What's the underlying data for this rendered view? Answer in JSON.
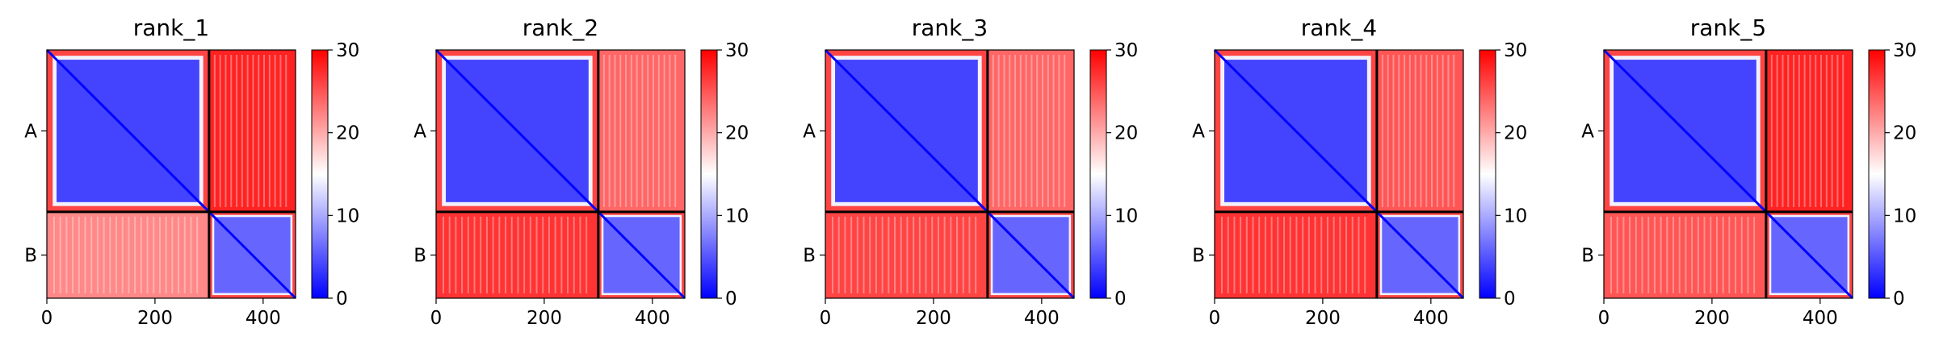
{
  "chart_data": [
    {
      "type": "heatmap",
      "title": "rank_1",
      "x_ticks": [
        0,
        200,
        400
      ],
      "y_tick_labels": [
        "A",
        "B"
      ],
      "chain_boundary": 300,
      "length": 460,
      "colorbar": {
        "min": 0,
        "max": 30,
        "ticks": [
          0,
          10,
          20,
          30
        ],
        "colors": [
          "#0000ff",
          "#ffffff",
          "#ff0000"
        ]
      },
      "blocks": {
        "A_A": 4,
        "A_B": 28,
        "B_A": 22,
        "B_B": 6
      }
    },
    {
      "type": "heatmap",
      "title": "rank_2",
      "x_ticks": [
        0,
        200,
        400
      ],
      "y_tick_labels": [
        "A",
        "B"
      ],
      "chain_boundary": 300,
      "length": 460,
      "colorbar": {
        "min": 0,
        "max": 30,
        "ticks": [
          0,
          10,
          20,
          30
        ],
        "colors": [
          "#0000ff",
          "#ffffff",
          "#ff0000"
        ]
      },
      "blocks": {
        "A_A": 4,
        "A_B": 24,
        "B_A": 27,
        "B_B": 6
      }
    },
    {
      "type": "heatmap",
      "title": "rank_3",
      "x_ticks": [
        0,
        200,
        400
      ],
      "y_tick_labels": [
        "A",
        "B"
      ],
      "chain_boundary": 300,
      "length": 460,
      "colorbar": {
        "min": 0,
        "max": 30,
        "ticks": [
          0,
          10,
          20,
          30
        ],
        "colors": [
          "#0000ff",
          "#ffffff",
          "#ff0000"
        ]
      },
      "blocks": {
        "A_A": 4,
        "A_B": 24,
        "B_A": 26,
        "B_B": 6
      }
    },
    {
      "type": "heatmap",
      "title": "rank_4",
      "x_ticks": [
        0,
        200,
        400
      ],
      "y_tick_labels": [
        "A",
        "B"
      ],
      "chain_boundary": 300,
      "length": 460,
      "colorbar": {
        "min": 0,
        "max": 30,
        "ticks": [
          0,
          10,
          20,
          30
        ],
        "colors": [
          "#0000ff",
          "#ffffff",
          "#ff0000"
        ]
      },
      "blocks": {
        "A_A": 4,
        "A_B": 25,
        "B_A": 27,
        "B_B": 6
      }
    },
    {
      "type": "heatmap",
      "title": "rank_5",
      "x_ticks": [
        0,
        200,
        400
      ],
      "y_tick_labels": [
        "A",
        "B"
      ],
      "chain_boundary": 300,
      "length": 460,
      "colorbar": {
        "min": 0,
        "max": 30,
        "ticks": [
          0,
          10,
          20,
          30
        ],
        "colors": [
          "#0000ff",
          "#ffffff",
          "#ff0000"
        ]
      },
      "blocks": {
        "A_A": 4,
        "A_B": 28,
        "B_A": 25,
        "B_B": 6
      }
    }
  ]
}
